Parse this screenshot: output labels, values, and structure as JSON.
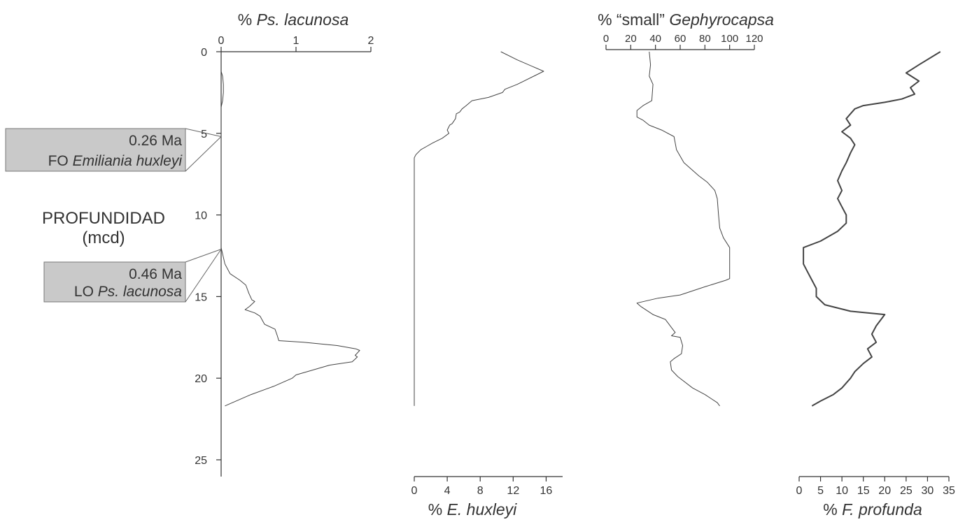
{
  "chart_data": {
    "type": "line",
    "depth_axis": {
      "label_line1": "PROFUNDIDAD",
      "label_line2": "(mcd)",
      "range": [
        0,
        26
      ],
      "ticks": [
        0,
        5,
        10,
        15,
        20,
        25
      ],
      "inverted": true
    },
    "panels": [
      {
        "name": "Ps. lacunosa",
        "xlabel_prefix": "% ",
        "xlabel_italic": "Ps. lacunosa",
        "axis_position": "top",
        "xlim": [
          0,
          2
        ],
        "ticks": [
          0,
          1,
          2
        ],
        "data": [
          [
            0,
            1.2
          ],
          [
            0.02,
            1.5
          ],
          [
            0.03,
            2.0
          ],
          [
            0.03,
            2.5
          ],
          [
            0.02,
            3.0
          ],
          [
            0,
            3.4
          ],
          [
            0,
            5
          ],
          [
            0,
            10
          ],
          [
            0,
            12.0
          ],
          [
            0.05,
            13.0
          ],
          [
            0.12,
            13.6
          ],
          [
            0.25,
            14.0
          ],
          [
            0.33,
            14.3
          ],
          [
            0.37,
            14.8
          ],
          [
            0.41,
            15.2
          ],
          [
            0.45,
            15.3
          ],
          [
            0.38,
            15.6
          ],
          [
            0.32,
            15.8
          ],
          [
            0.45,
            16.0
          ],
          [
            0.52,
            16.2
          ],
          [
            0.58,
            16.7
          ],
          [
            0.72,
            17.0
          ],
          [
            0.75,
            17.4
          ],
          [
            0.77,
            17.7
          ],
          [
            1.1,
            17.8
          ],
          [
            1.55,
            18.0
          ],
          [
            1.8,
            18.2
          ],
          [
            1.85,
            18.3
          ],
          [
            1.79,
            18.6
          ],
          [
            1.82,
            18.7
          ],
          [
            1.75,
            19.0
          ],
          [
            1.45,
            19.2
          ],
          [
            1.0,
            19.8
          ],
          [
            0.95,
            20.0
          ],
          [
            0.7,
            20.5
          ],
          [
            0.4,
            21.0
          ],
          [
            0.1,
            21.6
          ],
          [
            0.05,
            21.7
          ]
        ]
      },
      {
        "name": "E. huxleyi",
        "xlabel_prefix": "% ",
        "xlabel_italic": "E. huxleyi",
        "axis_position": "bottom",
        "xlim": [
          0,
          18
        ],
        "ticks": [
          0,
          4,
          8,
          12,
          16
        ],
        "data": [
          [
            10.5,
            0
          ],
          [
            12.5,
            0.5
          ],
          [
            15.7,
            1.2
          ],
          [
            14.5,
            1.5
          ],
          [
            12.5,
            2.0
          ],
          [
            11,
            2.3
          ],
          [
            10.7,
            2.5
          ],
          [
            9,
            2.8
          ],
          [
            7,
            3.0
          ],
          [
            6.3,
            3.3
          ],
          [
            5.8,
            3.5
          ],
          [
            5.5,
            3.7
          ],
          [
            5.1,
            3.8
          ],
          [
            5.0,
            4.1
          ],
          [
            4.6,
            4.4
          ],
          [
            4.3,
            4.5
          ],
          [
            4.0,
            4.8
          ],
          [
            4.2,
            5.0
          ],
          [
            3.4,
            5.3
          ],
          [
            2.2,
            5.6
          ],
          [
            1.5,
            5.8
          ],
          [
            0.8,
            6.0
          ],
          [
            0.2,
            6.3
          ],
          [
            0,
            6.5
          ],
          [
            0,
            21.7
          ]
        ]
      },
      {
        "name": "small Gephyrocapsa",
        "xlabel_prefix": "% “small” ",
        "xlabel_italic": "Gephyrocapsa",
        "axis_position": "top",
        "xlim": [
          0,
          120
        ],
        "ticks": [
          0,
          20,
          40,
          60,
          80,
          100,
          120
        ],
        "data": [
          [
            35,
            0
          ],
          [
            36,
            0.8
          ],
          [
            35,
            1.5
          ],
          [
            38,
            2.0
          ],
          [
            37,
            3.0
          ],
          [
            30,
            3.3
          ],
          [
            25,
            3.6
          ],
          [
            25,
            4.0
          ],
          [
            30,
            4.2
          ],
          [
            35,
            4.5
          ],
          [
            45,
            4.8
          ],
          [
            55,
            5.2
          ],
          [
            57,
            6.0
          ],
          [
            63,
            6.8
          ],
          [
            75,
            7.6
          ],
          [
            82,
            8.0
          ],
          [
            88,
            8.5
          ],
          [
            90,
            9.0
          ],
          [
            91,
            10.0
          ],
          [
            92,
            10.8
          ],
          [
            95,
            11.4
          ],
          [
            100,
            12.0
          ],
          [
            100,
            13.9
          ],
          [
            97,
            14.0
          ],
          [
            80,
            14.4
          ],
          [
            60,
            14.9
          ],
          [
            42,
            15.1
          ],
          [
            25,
            15.4
          ],
          [
            28,
            15.6
          ],
          [
            38,
            16.1
          ],
          [
            48,
            16.4
          ],
          [
            53,
            16.9
          ],
          [
            56,
            17.2
          ],
          [
            53,
            17.4
          ],
          [
            60,
            17.5
          ],
          [
            62,
            18.0
          ],
          [
            61,
            18.5
          ],
          [
            55,
            18.8
          ],
          [
            52,
            19.0
          ],
          [
            53,
            19.5
          ],
          [
            58,
            19.9
          ],
          [
            70,
            20.6
          ],
          [
            80,
            21.0
          ],
          [
            90,
            21.5
          ],
          [
            92,
            21.7
          ]
        ]
      },
      {
        "name": "F. profunda",
        "xlabel_prefix": "% ",
        "xlabel_italic": "F. profunda",
        "axis_position": "bottom",
        "xlim": [
          0,
          35
        ],
        "ticks": [
          0,
          5,
          10,
          15,
          20,
          25,
          30,
          35
        ],
        "data": [
          [
            33,
            0
          ],
          [
            28,
            0.8
          ],
          [
            25,
            1.3
          ],
          [
            28,
            1.8
          ],
          [
            26,
            2.2
          ],
          [
            27,
            2.6
          ],
          [
            24,
            2.9
          ],
          [
            20,
            3.1
          ],
          [
            15,
            3.3
          ],
          [
            13,
            3.5
          ],
          [
            12,
            3.8
          ],
          [
            11,
            4.1
          ],
          [
            12,
            4.5
          ],
          [
            10,
            4.9
          ],
          [
            12,
            5.3
          ],
          [
            13,
            5.7
          ],
          [
            12,
            6.2
          ],
          [
            11,
            6.8
          ],
          [
            10,
            7.3
          ],
          [
            9,
            7.9
          ],
          [
            10,
            8.5
          ],
          [
            9,
            9.0
          ],
          [
            10,
            9.5
          ],
          [
            11,
            10.0
          ],
          [
            11,
            10.5
          ],
          [
            9,
            11.0
          ],
          [
            5,
            11.6
          ],
          [
            1,
            12.0
          ],
          [
            1,
            13.0
          ],
          [
            2,
            13.5
          ],
          [
            3,
            14.0
          ],
          [
            4,
            14.5
          ],
          [
            4,
            15.0
          ],
          [
            6,
            15.5
          ],
          [
            12,
            15.9
          ],
          [
            20,
            16.1
          ],
          [
            18,
            16.8
          ],
          [
            17,
            17.3
          ],
          [
            18,
            17.8
          ],
          [
            16,
            18.2
          ],
          [
            17,
            18.7
          ],
          [
            15,
            19.1
          ],
          [
            13,
            19.6
          ],
          [
            12,
            20.0
          ],
          [
            10,
            20.6
          ],
          [
            8,
            21.0
          ],
          [
            5,
            21.4
          ],
          [
            3,
            21.7
          ]
        ]
      }
    ],
    "annotations": [
      {
        "line1": "0.26 Ma",
        "line2_prefix": "FO ",
        "line2_italic": "Emiliania huxleyi",
        "depth": 5.2
      },
      {
        "line1": "0.46 Ma",
        "line2_prefix": "LO ",
        "line2_italic": "Ps. lacunosa",
        "depth": 12.1
      }
    ]
  }
}
